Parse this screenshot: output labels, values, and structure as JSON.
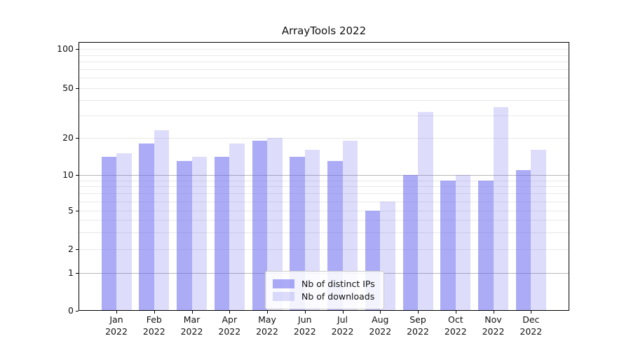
{
  "chart_data": {
    "type": "bar",
    "title": "ArrayTools 2022",
    "categories": [
      "Jan",
      "Feb",
      "Mar",
      "Apr",
      "May",
      "Jun",
      "Jul",
      "Aug",
      "Sep",
      "Oct",
      "Nov",
      "Dec"
    ],
    "year_label": "2022",
    "series": [
      {
        "name": "Nb of distinct IPs",
        "values": [
          14,
          18,
          13,
          14,
          19,
          14,
          13,
          5,
          10,
          9,
          9,
          11
        ],
        "color": "#6666ee",
        "alpha": 0.55
      },
      {
        "name": "Nb of downloads",
        "values": [
          15,
          23,
          14,
          18,
          20,
          16,
          19,
          6,
          32,
          10,
          35,
          16
        ],
        "color": "#6666ee",
        "alpha": 0.22
      }
    ],
    "y_axis": {
      "scale": "symlog",
      "tick_values": [
        0,
        1,
        2,
        5,
        10,
        20,
        50,
        100
      ],
      "tick_labels": [
        "0",
        "1",
        "2",
        "5",
        "10",
        "20",
        "50",
        "100"
      ],
      "minor_gridlines": [
        2,
        3,
        4,
        5,
        6,
        7,
        8,
        9,
        20,
        30,
        40,
        50,
        60,
        70,
        80,
        90,
        100
      ],
      "major_gridlines": [
        1,
        10
      ]
    },
    "legend": {
      "position": "lower center"
    },
    "grid": true,
    "colors": {
      "minor_grid": "#e8e8e8",
      "major_grid": "#b8b8b8",
      "frame": "#000000"
    }
  }
}
